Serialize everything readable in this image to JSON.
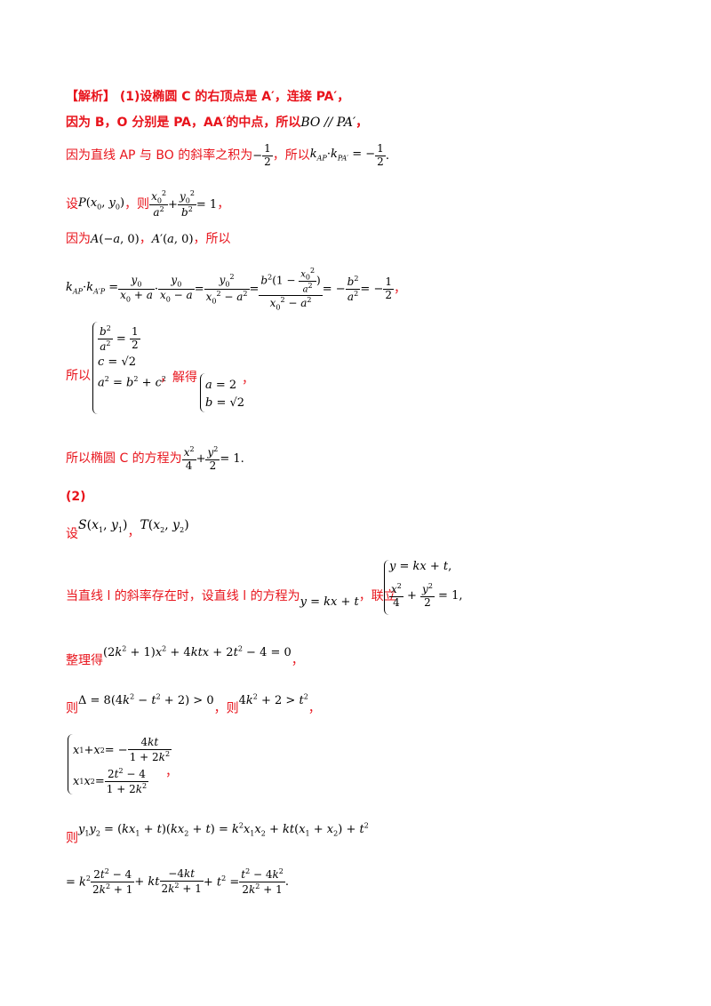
{
  "doc": {
    "l1_tag": "【解析】",
    "l1_text": " (1)设椭圆 C 的右顶点是 A′，连接 PA′，",
    "l2_text": "因为 B，O 分别是 PA，AA′的中点，所以",
    "l2_math": "BO // PA′",
    "l2_end": "，",
    "l3_text": "因为直线 AP 与 BO 的斜率之积为",
    "l3_mid": "，所以",
    "l3_end": ".",
    "l4_text": "设",
    "l4_mid": "，则",
    "l4_end": "，",
    "l5_text": "因为",
    "l5_end": "，所以",
    "l7_text": "所以",
    "l7_mid": "，解得",
    "l7_end": "，",
    "l8_text": "所以椭圆 C 的方程为",
    "l8_end": ".",
    "p2_label": "(2)",
    "l9_text": "设",
    "l10_text": "当直线 l 的斜率存在时，设直线 l 的方程为",
    "l10_mid": "，联立",
    "l11_text": "整理得",
    "l11_end": "，",
    "l12_text": "则",
    "l12_mid": "，则",
    "l12_end": "，",
    "l13_end": "，",
    "l14_text": "则"
  }
}
